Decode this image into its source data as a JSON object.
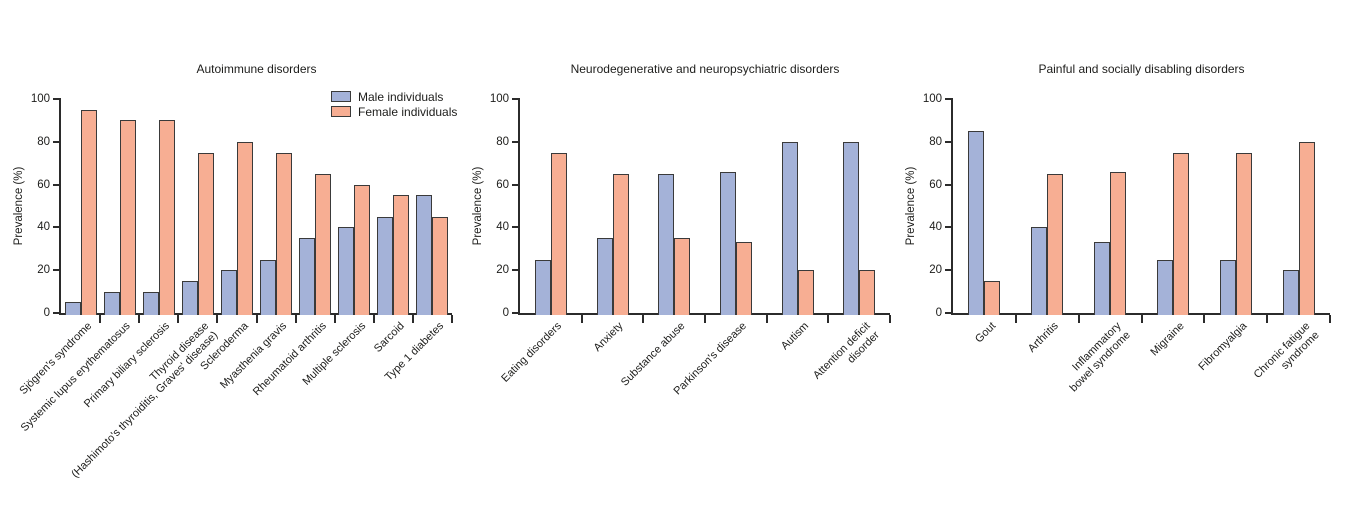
{
  "figure": {
    "background": "#ffffff"
  },
  "colors": {
    "male": "#a4b2d8",
    "female": "#f7ae93",
    "bar_border": "#3a3a3a",
    "axis": "#2b2b2b",
    "text": "#1d1d1b"
  },
  "legend": {
    "position": "top-right-of-first-panel",
    "items": [
      {
        "label": "Male individuals",
        "color_key": "male"
      },
      {
        "label": "Female individuals",
        "color_key": "female"
      }
    ]
  },
  "chart_data": [
    {
      "type": "bar",
      "title": "Autoimmune disorders",
      "xlabel": "",
      "ylabel": "Prevalence (%)",
      "ylim": [
        0,
        100
      ],
      "yticks": [
        0,
        20,
        40,
        60,
        80,
        100
      ],
      "grid": false,
      "categories": [
        [
          "Sjögren's syndrome"
        ],
        [
          "Systemic lupus erythematosus"
        ],
        [
          "Primary biliary sclerosis"
        ],
        [
          "Thyroid disease",
          "(Hashimoto's thyroiditis, Graves' disease)"
        ],
        [
          "Scleroderma"
        ],
        [
          "Myasthenia gravis"
        ],
        [
          "Rheumatoid arthritis"
        ],
        [
          "Multiple sclerosis"
        ],
        [
          "Sarcoid"
        ],
        [
          "Type 1 diabetes"
        ]
      ],
      "series": [
        {
          "name": "Male individuals",
          "values": [
            5,
            10,
            10,
            15,
            20,
            25,
            35,
            40,
            45,
            55
          ]
        },
        {
          "name": "Female individuals",
          "values": [
            95,
            90,
            90,
            75,
            80,
            75,
            65,
            60,
            55,
            45
          ]
        }
      ]
    },
    {
      "type": "bar",
      "title": "Neurodegenerative and neuropsychiatric disorders",
      "xlabel": "",
      "ylabel": "Prevalence (%)",
      "ylim": [
        0,
        100
      ],
      "yticks": [
        0,
        20,
        40,
        60,
        80,
        100
      ],
      "grid": false,
      "categories": [
        [
          "Eating disorders"
        ],
        [
          "Anxiety"
        ],
        [
          "Substance abuse"
        ],
        [
          "Parkinson's disease"
        ],
        [
          "Autism"
        ],
        [
          "Attention deficit",
          "disorder"
        ]
      ],
      "series": [
        {
          "name": "Male individuals",
          "values": [
            25,
            35,
            65,
            66,
            80,
            80
          ]
        },
        {
          "name": "Female individuals",
          "values": [
            75,
            65,
            35,
            33,
            20,
            20
          ]
        }
      ]
    },
    {
      "type": "bar",
      "title": "Painful and socially disabling disorders",
      "xlabel": "",
      "ylabel": "Prevalence (%)",
      "ylim": [
        0,
        100
      ],
      "yticks": [
        0,
        20,
        40,
        60,
        80,
        100
      ],
      "grid": false,
      "categories": [
        [
          "Gout"
        ],
        [
          "Arthritis"
        ],
        [
          "Inflammatory",
          "bowel syndrome"
        ],
        [
          "Migraine"
        ],
        [
          "Fibromyalgia"
        ],
        [
          "Chronic fatigue",
          "syndrome"
        ]
      ],
      "series": [
        {
          "name": "Male individuals",
          "values": [
            85,
            40,
            33,
            25,
            25,
            20
          ]
        },
        {
          "name": "Female individuals",
          "values": [
            15,
            65,
            66,
            75,
            75,
            80
          ]
        }
      ]
    }
  ]
}
